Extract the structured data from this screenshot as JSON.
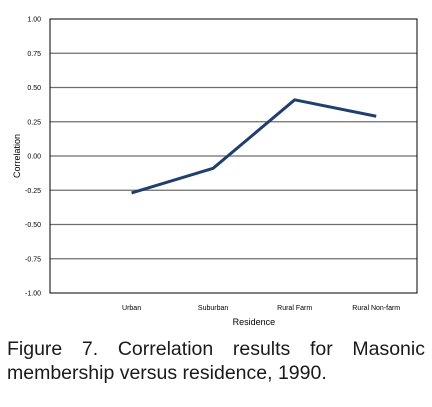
{
  "chart_data": {
    "type": "line",
    "categories": [
      "Urban",
      "Suburban",
      "Rural Farm",
      "Rural Non-farm"
    ],
    "series": [
      {
        "values": [
          -0.27,
          -0.09,
          0.41,
          0.29
        ]
      }
    ],
    "ylabel": "Correlation",
    "xlabel": "Residence",
    "ylim": [
      -1.0,
      1.0
    ],
    "yticks": [
      "1.00",
      "0.75",
      "0.50",
      "0.25",
      "0.00",
      "-0.25",
      "-0.50",
      "-0.75",
      "-1.00"
    ],
    "grid": true,
    "line_color": "#1f3f6f"
  },
  "caption": "Figure 7. Correlation results for Masonic membership versus residence, 1990."
}
